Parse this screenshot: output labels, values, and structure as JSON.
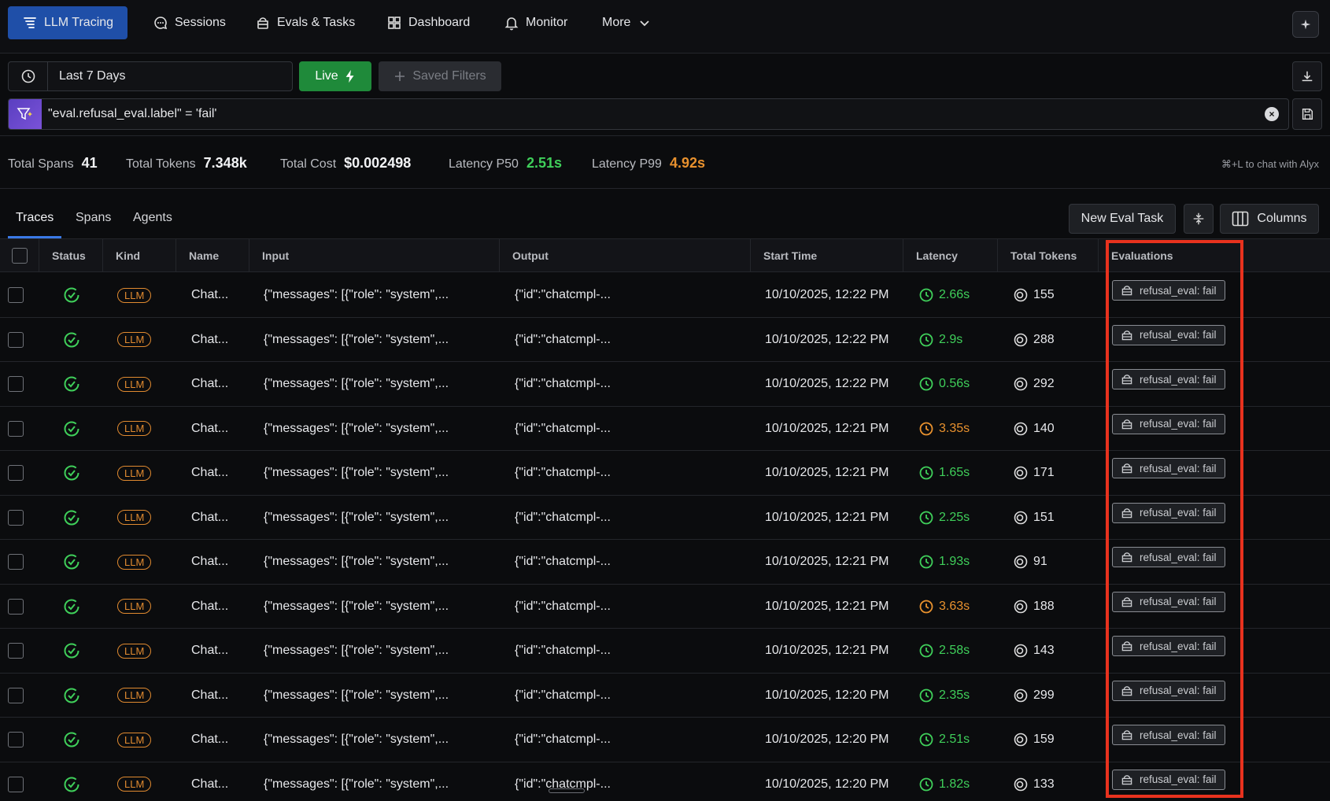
{
  "nav": {
    "items": [
      {
        "label": "LLM Tracing",
        "icon": "tracing-icon",
        "active": true
      },
      {
        "label": "Sessions",
        "icon": "chat-bubble-icon"
      },
      {
        "label": "Evals & Tasks",
        "icon": "flask-icon"
      },
      {
        "label": "Dashboard",
        "icon": "grid-icon"
      },
      {
        "label": "Monitor",
        "icon": "bell-icon"
      },
      {
        "label": "More",
        "icon": "chevron-down-icon"
      }
    ]
  },
  "filters": {
    "time_range": "Last 7 Days",
    "live_label": "Live",
    "saved_filters_label": "Saved Filters",
    "query": "\"eval.refusal_eval.label\" = 'fail'"
  },
  "stats": {
    "total_spans_label": "Total Spans",
    "total_spans": "41",
    "total_tokens_label": "Total Tokens",
    "total_tokens": "7.348k",
    "total_cost_label": "Total Cost",
    "total_cost": "$0.002498",
    "latency_p50_label": "Latency P50",
    "latency_p50": "2.51s",
    "latency_p99_label": "Latency P99",
    "latency_p99": "4.92s",
    "alyx_hint": "⌘+L to chat with Alyx"
  },
  "tabs": [
    "Traces",
    "Spans",
    "Agents"
  ],
  "actions": {
    "new_eval_task": "New Eval Task",
    "columns": "Columns"
  },
  "table": {
    "headers": [
      "Status",
      "Kind",
      "Name",
      "Input",
      "Output",
      "Start Time",
      "Latency",
      "Total Tokens",
      "Evaluations"
    ],
    "rows": [
      {
        "kind": "LLM",
        "name": "Chat...",
        "input": "{\"messages\": [{\"role\": \"system\",...",
        "output": "{\"id\":\"chatcmpl-...",
        "start": "10/10/2025, 12:22 PM",
        "latency": "2.66s",
        "lat_status": "green",
        "tokens": "155",
        "eval": "refusal_eval: fail"
      },
      {
        "kind": "LLM",
        "name": "Chat...",
        "input": "{\"messages\": [{\"role\": \"system\",...",
        "output": "{\"id\":\"chatcmpl-...",
        "start": "10/10/2025, 12:22 PM",
        "latency": "2.9s",
        "lat_status": "green",
        "tokens": "288",
        "eval": "refusal_eval: fail"
      },
      {
        "kind": "LLM",
        "name": "Chat...",
        "input": "{\"messages\": [{\"role\": \"system\",...",
        "output": "{\"id\":\"chatcmpl-...",
        "start": "10/10/2025, 12:22 PM",
        "latency": "0.56s",
        "lat_status": "green",
        "tokens": "292",
        "eval": "refusal_eval: fail"
      },
      {
        "kind": "LLM",
        "name": "Chat...",
        "input": "{\"messages\": [{\"role\": \"system\",...",
        "output": "{\"id\":\"chatcmpl-...",
        "start": "10/10/2025, 12:21 PM",
        "latency": "3.35s",
        "lat_status": "orange",
        "tokens": "140",
        "eval": "refusal_eval: fail"
      },
      {
        "kind": "LLM",
        "name": "Chat...",
        "input": "{\"messages\": [{\"role\": \"system\",...",
        "output": "{\"id\":\"chatcmpl-...",
        "start": "10/10/2025, 12:21 PM",
        "latency": "1.65s",
        "lat_status": "green",
        "tokens": "171",
        "eval": "refusal_eval: fail"
      },
      {
        "kind": "LLM",
        "name": "Chat...",
        "input": "{\"messages\": [{\"role\": \"system\",...",
        "output": "{\"id\":\"chatcmpl-...",
        "start": "10/10/2025, 12:21 PM",
        "latency": "2.25s",
        "lat_status": "green",
        "tokens": "151",
        "eval": "refusal_eval: fail"
      },
      {
        "kind": "LLM",
        "name": "Chat...",
        "input": "{\"messages\": [{\"role\": \"system\",...",
        "output": "{\"id\":\"chatcmpl-...",
        "start": "10/10/2025, 12:21 PM",
        "latency": "1.93s",
        "lat_status": "green",
        "tokens": "91",
        "eval": "refusal_eval: fail"
      },
      {
        "kind": "LLM",
        "name": "Chat...",
        "input": "{\"messages\": [{\"role\": \"system\",...",
        "output": "{\"id\":\"chatcmpl-...",
        "start": "10/10/2025, 12:21 PM",
        "latency": "3.63s",
        "lat_status": "orange",
        "tokens": "188",
        "eval": "refusal_eval: fail"
      },
      {
        "kind": "LLM",
        "name": "Chat...",
        "input": "{\"messages\": [{\"role\": \"system\",...",
        "output": "{\"id\":\"chatcmpl-...",
        "start": "10/10/2025, 12:21 PM",
        "latency": "2.58s",
        "lat_status": "green",
        "tokens": "143",
        "eval": "refusal_eval: fail"
      },
      {
        "kind": "LLM",
        "name": "Chat...",
        "input": "{\"messages\": [{\"role\": \"system\",...",
        "output": "{\"id\":\"chatcmpl-...",
        "start": "10/10/2025, 12:20 PM",
        "latency": "2.35s",
        "lat_status": "green",
        "tokens": "299",
        "eval": "refusal_eval: fail"
      },
      {
        "kind": "LLM",
        "name": "Chat...",
        "input": "{\"messages\": [{\"role\": \"system\",...",
        "output": "{\"id\":\"chatcmpl-...",
        "start": "10/10/2025, 12:20 PM",
        "latency": "2.51s",
        "lat_status": "green",
        "tokens": "159",
        "eval": "refusal_eval: fail"
      },
      {
        "kind": "LLM",
        "name": "Chat...",
        "input": "{\"messages\": [{\"role\": \"system\",...",
        "output": "{\"id\":\"chatcmpl-...",
        "start": "10/10/2025, 12:20 PM",
        "latency": "1.82s",
        "lat_status": "green",
        "tokens": "133",
        "eval": "refusal_eval: fail"
      }
    ]
  },
  "colors": {
    "accent": "#1f4fa8",
    "live": "#1f8a3a",
    "good": "#3fcf5a",
    "warn": "#e8912e",
    "highlight": "#e8321e"
  }
}
